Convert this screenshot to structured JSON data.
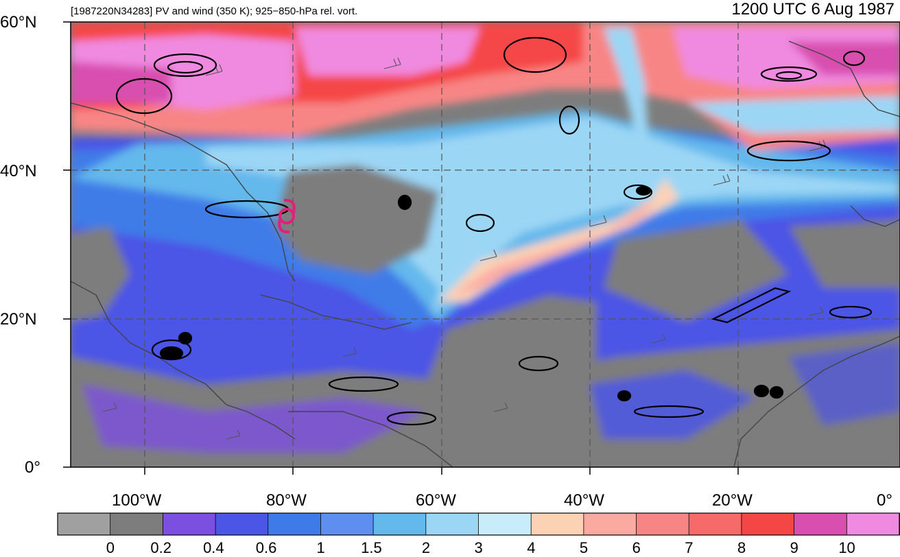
{
  "header": {
    "subtitle": "[1987220N34283] PV and wind (350 K); 925−850-hPa rel. vort.",
    "time": "1200 UTC 6 Aug 1987"
  },
  "axes": {
    "lat_labels": [
      "60°N",
      "40°N",
      "20°N",
      "0°"
    ],
    "lon_labels": [
      "100°W",
      "80°W",
      "60°W",
      "40°W",
      "20°W",
      "0°"
    ]
  },
  "colorbar": {
    "labels": [
      "0",
      "0.2",
      "0.4",
      "0.6",
      "1",
      "1.5",
      "2",
      "3",
      "4",
      "5",
      "6",
      "7",
      "8",
      "9",
      "10"
    ],
    "colors": [
      "#a0a0a0",
      "#7d7d7d",
      "#7b4fe0",
      "#4b55e6",
      "#3f7be8",
      "#5d8ef0",
      "#63b8ec",
      "#9cd6f5",
      "#c8ecfa",
      "#fcd2b5",
      "#fbaaa2",
      "#f88585",
      "#f66a6a",
      "#f54646",
      "#d84fb0",
      "#f08ae0"
    ]
  },
  "colors": {
    "storm_symbol": "#e0207a",
    "contours": "#000000",
    "coastlines": "#444444"
  }
}
